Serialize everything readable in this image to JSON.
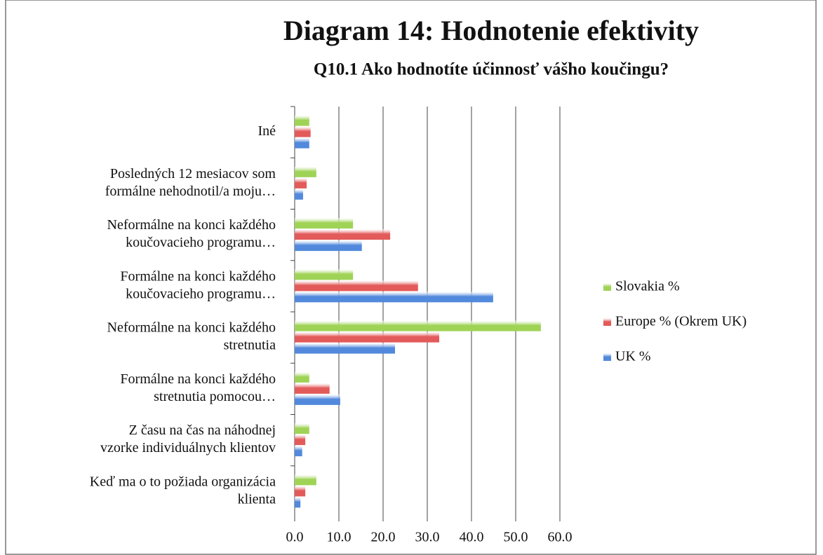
{
  "chart_data": {
    "type": "bar",
    "orientation": "horizontal",
    "title": "Diagram 14: Hodnotenie efektivity",
    "subtitle": "Q10.1 Ako hodnotíte účinnosť vášho koučingu?",
    "categories": [
      [
        "Iné"
      ],
      [
        "Posledných 12 mesiacov som",
        "formálne nehodnotil/a moju…"
      ],
      [
        "Neformálne na konci každého",
        "koučovacieho programu…"
      ],
      [
        "Formálne na konci každého",
        "koučovacieho programu…"
      ],
      [
        "Neformálne na konci každého",
        "stretnutia"
      ],
      [
        "Formálne na konci každého",
        "stretnutia pomocou…"
      ],
      [
        "Z času na čas na náhodnej",
        "vzorke individuálnych klientov"
      ],
      [
        "Keď ma o to požiada organizácia",
        "klienta"
      ]
    ],
    "series": [
      {
        "name": "Slovakia %",
        "color": "#9fd356",
        "values": [
          3.3,
          4.9,
          13.2,
          13.2,
          55.7,
          3.3,
          3.3,
          4.9
        ]
      },
      {
        "name": "Europe % (Okrem UK)",
        "color": "#e35a5a",
        "values": [
          3.6,
          2.7,
          21.6,
          27.9,
          32.7,
          7.9,
          2.4,
          2.4
        ]
      },
      {
        "name": "UK %",
        "color": "#5289dc",
        "values": [
          3.3,
          1.9,
          15.2,
          44.9,
          22.7,
          10.3,
          1.7,
          1.3
        ]
      }
    ],
    "xlim": [
      0,
      60
    ],
    "xticks": [
      {
        "value": 0,
        "label": "0.0"
      },
      {
        "value": 10,
        "label": "10.0"
      },
      {
        "value": 20,
        "label": "20.0"
      },
      {
        "value": 30,
        "label": "30.0"
      },
      {
        "value": 40,
        "label": "40.0"
      },
      {
        "value": 50,
        "label": "50.0"
      },
      {
        "value": 60,
        "label": "60.0"
      }
    ],
    "grid": true,
    "legend": "right"
  }
}
